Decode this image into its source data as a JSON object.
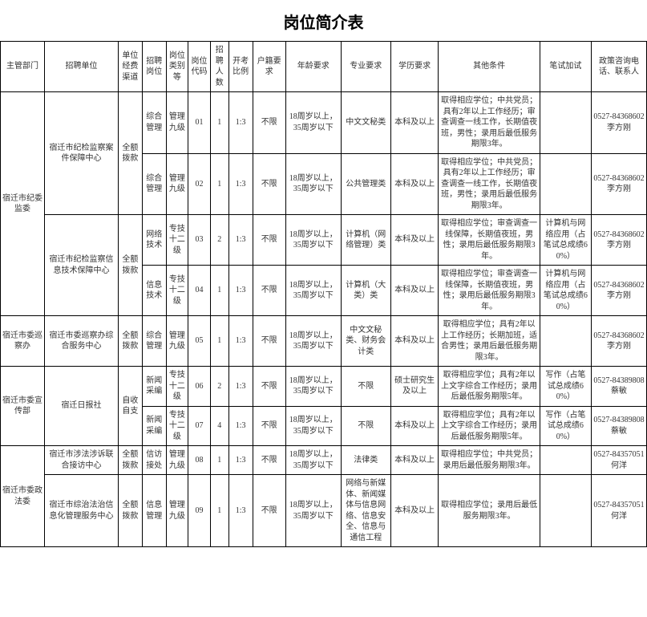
{
  "title": "岗位简介表",
  "headers": {
    "dept": "主管部门",
    "unit": "招聘单位",
    "fund": "单位经费渠道",
    "post": "招聘岗位",
    "cat": "岗位类别等",
    "code": "岗位代码",
    "num": "招聘人数",
    "ratio": "开考比例",
    "huji": "户籍要求",
    "age": "年龄要求",
    "major": "专业要求",
    "edu": "学历要求",
    "other": "其他条件",
    "extra_test": "笔试加试",
    "contact": "政策咨询电话、联系人"
  },
  "rows": [
    {
      "dept": "宿迁市纪委监委",
      "unit": "宿迁市纪检监察案件保障中心",
      "fund": "全额拨款",
      "post": "综合管理",
      "cat": "管理九级",
      "code": "01",
      "num": "1",
      "ratio": "1:3",
      "huji": "不限",
      "age": "18周岁以上，35周岁以下",
      "major": "中文文秘类",
      "edu": "本科及以上",
      "other": "取得相应学位；中共党员；具有2年以上工作经历；审查调查一线工作，长期值夜班，男性；录用后最低服务期限3年。",
      "extra_test": "",
      "contact": "0527-84368602 李方刚"
    },
    {
      "post": "综合管理",
      "cat": "管理九级",
      "code": "02",
      "num": "1",
      "ratio": "1:3",
      "huji": "不限",
      "age": "18周岁以上，35周岁以下",
      "major": "公共管理类",
      "edu": "本科及以上",
      "other": "取得相应学位；中共党员；具有2年以上工作经历；审查调查一线工作，长期值夜班，男性；录用后最低服务期限3年。",
      "extra_test": "",
      "contact": "0527-84368602 李方刚"
    },
    {
      "unit": "宿迁市纪检监察信息技术保障中心",
      "fund": "全额拨款",
      "post": "网络技术",
      "cat": "专技十二级",
      "code": "03",
      "num": "2",
      "ratio": "1:3",
      "huji": "不限",
      "age": "18周岁以上，35周岁以下",
      "major": "计算机（网络管理）类",
      "edu": "本科及以上",
      "other": "取得相应学位；审查调查一线保障，长期值夜班，男性；录用后最低服务期限3年。",
      "extra_test": "计算机与网络应用（占笔试总成绩60%）",
      "contact": "0527-84368602 李方刚"
    },
    {
      "post": "信息技术",
      "cat": "专技十二级",
      "code": "04",
      "num": "1",
      "ratio": "1:3",
      "huji": "不限",
      "age": "18周岁以上，35周岁以下",
      "major": "计算机（大类）类",
      "edu": "本科及以上",
      "other": "取得相应学位；审查调查一线保障，长期值夜班，男性；录用后最低服务期限3年。",
      "extra_test": "计算机与网络应用（占笔试总成绩60%）",
      "contact": "0527-84368602 李方刚"
    },
    {
      "dept": "宿迁市委巡察办",
      "unit": "宿迁市委巡察办综合服务中心",
      "fund": "全额拨款",
      "post": "综合管理",
      "cat": "管理九级",
      "code": "05",
      "num": "1",
      "ratio": "1:3",
      "huji": "不限",
      "age": "18周岁以上，35周岁以下",
      "major": "中文文秘类、财务会计类",
      "edu": "本科及以上",
      "other": "取得相应学位；具有2年以上工作经历；长期加班，适合男性；录用后最低服务期限3年。",
      "extra_test": "",
      "contact": "0527-84368602 李方刚"
    },
    {
      "dept": "宿迁市委宣传部",
      "unit": "宿迁日报社",
      "fund": "自收自支",
      "post": "新闻采编",
      "cat": "专技十二级",
      "code": "06",
      "num": "2",
      "ratio": "1:3",
      "huji": "不限",
      "age": "18周岁以上，35周岁以下",
      "major": "不限",
      "edu": "硕士研究生及以上",
      "other": "取得相应学位；具有2年以上文字综合工作经历；录用后最低服务期限5年。",
      "extra_test": "写作（占笔试总成绩60%）",
      "contact": "0527-84389808 蔡敏"
    },
    {
      "post": "新闻采编",
      "cat": "专技十二级",
      "code": "07",
      "num": "4",
      "ratio": "1:3",
      "huji": "不限",
      "age": "18周岁以上，35周岁以下",
      "major": "不限",
      "edu": "本科及以上",
      "other": "取得相应学位；具有2年以上文字综合工作经历；录用后最低服务期限5年。",
      "extra_test": "写作（占笔试总成绩60%）",
      "contact": "0527-84389808 蔡敏"
    },
    {
      "dept": "宿迁市委政法委",
      "unit": "宿迁市涉法涉诉联合接访中心",
      "fund": "全额拨款",
      "post": "信访接处",
      "cat": "管理九级",
      "code": "08",
      "num": "1",
      "ratio": "1:3",
      "huji": "不限",
      "age": "18周岁以上，35周岁以下",
      "major": "法律类",
      "edu": "本科及以上",
      "other": "取得相应学位；中共党员；录用后最低服务期限3年。",
      "extra_test": "",
      "contact": "0527-84357051 何洋"
    },
    {
      "unit": "宿迁市综治法治信息化管理服务中心",
      "fund": "全额拨款",
      "post": "信息管理",
      "cat": "管理九级",
      "code": "09",
      "num": "1",
      "ratio": "1:3",
      "huji": "不限",
      "age": "18周岁以上，35周岁以下",
      "major": "网络与新媒体、新闻媒体与信息网络、信息安全、信息与通信工程",
      "edu": "本科及以上",
      "other": "取得相应学位；录用后最低服务期限3年。",
      "extra_test": "",
      "contact": "0527-84357051 何洋"
    }
  ],
  "layout": {
    "dept_rowspans": [
      4,
      0,
      0,
      0,
      1,
      2,
      0,
      2,
      0
    ],
    "unit_rowspans": [
      2,
      0,
      2,
      0,
      1,
      2,
      0,
      1,
      1
    ],
    "fund_rowspans": [
      2,
      0,
      2,
      0,
      1,
      2,
      0,
      1,
      1
    ]
  }
}
